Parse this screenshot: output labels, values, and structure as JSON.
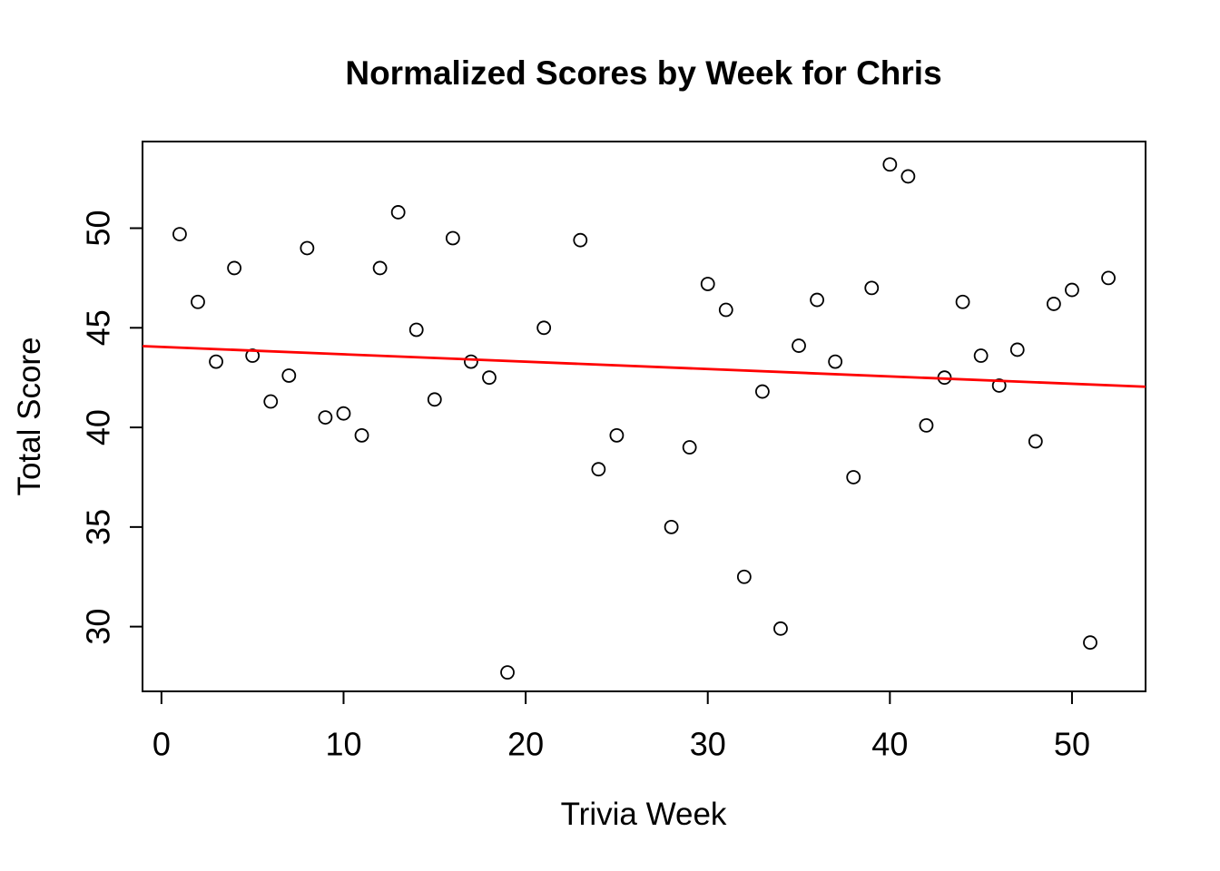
{
  "page": {
    "background_color": "#ffffff",
    "foreground_color": "#000000"
  },
  "chart_data": {
    "type": "scatter",
    "title": "Normalized Scores by Week for Chris",
    "xlabel": "Trivia Week",
    "ylabel": "Total Score",
    "x_ticks": [
      0,
      10,
      20,
      30,
      40,
      50
    ],
    "y_ticks": [
      30,
      35,
      40,
      45,
      50
    ],
    "xlim": [
      -1.04,
      54.04
    ],
    "ylim": [
      26.75,
      54.35
    ],
    "grid": false,
    "legend": "none",
    "point_style": {
      "shape": "open-circle",
      "color": "#000000",
      "radius_px": 7,
      "stroke_px": 1.8
    },
    "series": [
      {
        "name": "weekly-normalized-scores",
        "x": [
          1,
          2,
          3,
          4,
          5,
          6,
          7,
          8,
          9,
          10,
          11,
          12,
          13,
          14,
          15,
          16,
          17,
          18,
          19,
          21,
          23,
          24,
          25,
          28,
          29,
          30,
          31,
          32,
          33,
          34,
          35,
          36,
          37,
          38,
          39,
          40,
          41,
          42,
          43,
          44,
          45,
          46,
          47,
          48,
          49,
          50,
          51,
          52
        ],
        "y": [
          49.7,
          46.3,
          43.3,
          48.0,
          43.6,
          41.3,
          42.6,
          49.0,
          40.5,
          40.7,
          39.6,
          48.0,
          50.8,
          44.9,
          41.4,
          49.5,
          43.3,
          42.5,
          27.7,
          45.0,
          49.4,
          37.9,
          39.6,
          35.0,
          39.0,
          47.2,
          45.9,
          32.5,
          41.8,
          29.9,
          44.1,
          46.4,
          43.3,
          37.5,
          47.0,
          53.2,
          52.6,
          40.1,
          42.5,
          46.3,
          43.6,
          42.1,
          43.9,
          39.3,
          46.2,
          46.9,
          29.2,
          47.5
        ]
      }
    ],
    "trend_line": {
      "type": "linear-regression",
      "color": "#ff0000",
      "intercept": 44.04,
      "slope": -0.037,
      "stroke_px": 2.8
    }
  }
}
